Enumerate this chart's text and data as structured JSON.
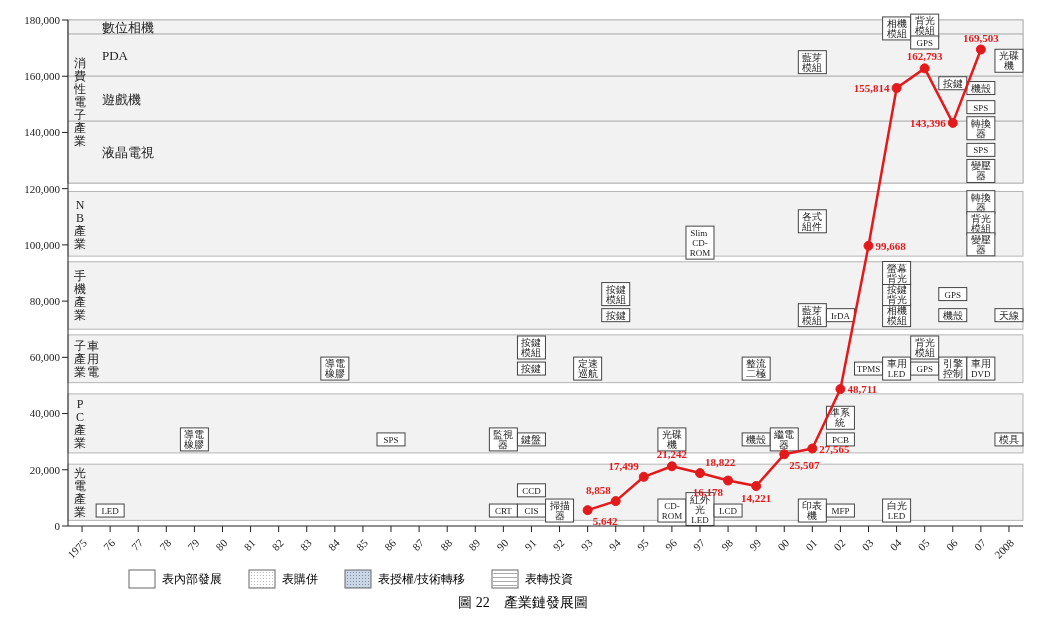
{
  "chart_data": {
    "type": "line",
    "title": "圖 22　產業鏈發展圖",
    "categories": [
      "1975",
      "76",
      "77",
      "78",
      "79",
      "80",
      "81",
      "82",
      "83",
      "84",
      "85",
      "86",
      "87",
      "88",
      "89",
      "90",
      "91",
      "92",
      "93",
      "94",
      "95",
      "96",
      "97",
      "98",
      "99",
      "00",
      "01",
      "02",
      "03",
      "04",
      "05",
      "06",
      "07",
      "2008"
    ],
    "series": [
      {
        "color": "#e31a1c",
        "values": [
          null,
          null,
          null,
          null,
          null,
          null,
          null,
          null,
          null,
          null,
          null,
          null,
          null,
          null,
          null,
          null,
          null,
          null,
          5642,
          8858,
          17499,
          21242,
          18822,
          16178,
          14221,
          25507,
          27565,
          48711,
          99668,
          155814,
          162793,
          143396,
          169503,
          null
        ],
        "value_labels": [
          null,
          null,
          null,
          null,
          null,
          null,
          null,
          null,
          null,
          null,
          null,
          null,
          null,
          null,
          null,
          null,
          null,
          null,
          "5,642",
          "8,858",
          "17,499",
          "21,242",
          "18,822",
          "16,178",
          "14,221",
          "25,507",
          "27,565",
          "48,711",
          "99,668",
          "155,814",
          "162,793",
          "143,396",
          "169,503",
          null
        ]
      }
    ],
    "ylim": [
      0,
      180000
    ],
    "yticks": [
      0,
      {
        "value": 20000,
        "label": "20,000"
      },
      {
        "value": 40000,
        "label": "40,000"
      },
      {
        "value": 60000,
        "label": "60,000"
      },
      {
        "value": 80000,
        "label": "80,000"
      },
      {
        "value": 100000,
        "label": "100,000"
      },
      {
        "value": 120000,
        "label": "120,000"
      },
      {
        "value": 140000,
        "label": "140,000"
      },
      {
        "value": 160000,
        "label": "160,000"
      },
      {
        "value": 180000,
        "label": "180,000"
      }
    ],
    "marker": "circle",
    "line_style": "solid",
    "bands": [
      {
        "axis": "y",
        "from": 2000,
        "to": 22000,
        "label": "光電產業",
        "color": "#f2f2f2"
      },
      {
        "axis": "y",
        "from": 26000,
        "to": 47000,
        "label": "PC產業",
        "color": "#f2f2f2"
      },
      {
        "axis": "y",
        "from": 51000,
        "to": 68000,
        "label": "車用電子產業",
        "color": "#f2f2f2"
      },
      {
        "axis": "y",
        "from": 70000,
        "to": 94000,
        "label": "手機產業",
        "color": "#f2f2f2"
      },
      {
        "axis": "y",
        "from": 96000,
        "to": 119000,
        "label": "NB產業",
        "color": "#f2f2f2"
      },
      {
        "axis": "y",
        "from": 122000,
        "to": 180000,
        "label": "消費性電子產業",
        "color": "#f2f2f2"
      },
      {
        "axis": "y",
        "from": 175000,
        "to": 180000,
        "label": "數位相機",
        "color": "#f2f2f2"
      },
      {
        "axis": "y",
        "from": 160000,
        "to": 175000,
        "label": "PDA",
        "color": "#f2f2f2"
      },
      {
        "axis": "y",
        "from": 144000,
        "to": 160000,
        "label": "遊戲機",
        "color": "#f2f2f2"
      },
      {
        "axis": "y",
        "from": 122000,
        "to": 144000,
        "label": "液晶電視",
        "color": "#f2f2f2"
      }
    ],
    "annotations": [
      "表內部發展",
      "表購併",
      "表授權/技術轉移",
      "表轉投資",
      {
        "text": "LED",
        "x": "76",
        "y": 5500
      },
      {
        "text": "CRT",
        "x": "90",
        "y": 5500
      },
      {
        "text": "CIS",
        "x": "91",
        "y": 5500
      },
      {
        "text": "CCD",
        "x": "91",
        "y": 12700
      },
      {
        "text": "掃描器",
        "x": "92",
        "y": 5500
      },
      {
        "text": "CD-ROM",
        "x": "96",
        "y": 5500
      },
      {
        "text": "紅外光LED",
        "x": "97",
        "y": 6000
      },
      {
        "text": "LCD",
        "x": "98",
        "y": 5500
      },
      {
        "text": "印表機",
        "x": "01",
        "y": 5500
      },
      {
        "text": "MFP",
        "x": "02",
        "y": 5500
      },
      {
        "text": "白光LED",
        "x": "04",
        "y": 5500
      },
      {
        "text": "導電橡膠",
        "x": "79",
        "y": 30800
      },
      {
        "text": "SPS",
        "x": "86",
        "y": 30800
      },
      {
        "text": "監視器",
        "x": "90",
        "y": 30800
      },
      {
        "text": "鍵盤",
        "x": "91",
        "y": 30800
      },
      {
        "text": "光碟機",
        "x": "96",
        "y": 30800
      },
      {
        "text": "機殼",
        "x": "99",
        "y": 30800
      },
      {
        "text": "繼電器",
        "x": "00",
        "y": 30800
      },
      {
        "text": "PCB",
        "x": "02",
        "y": 30800
      },
      {
        "text": "準系統",
        "x": "02",
        "y": 38500
      },
      {
        "text": "模具",
        "x": "2008",
        "y": 30800
      },
      {
        "text": "導電橡膠",
        "x": "84",
        "y": 56000
      },
      {
        "text": "按鍵",
        "x": "91",
        "y": 56000
      },
      {
        "text": "按鍵模組",
        "x": "91",
        "y": 63500
      },
      {
        "text": "定速巡航",
        "x": "93",
        "y": 56000
      },
      {
        "text": "整流二極",
        "x": "99",
        "y": 56000
      },
      {
        "text": "TPMS",
        "x": "03",
        "y": 56000
      },
      {
        "text": "車用LED",
        "x": "04",
        "y": 56000
      },
      {
        "text": "GPS",
        "x": "05",
        "y": 56000
      },
      {
        "text": "背光模組",
        "x": "05",
        "y": 63500
      },
      {
        "text": "引擎控制",
        "x": "06",
        "y": 56000
      },
      {
        "text": "車用DVD",
        "x": "07",
        "y": 56000
      },
      {
        "text": "按鍵",
        "x": "94",
        "y": 75000
      },
      {
        "text": "按鍵模組",
        "x": "94",
        "y": 82500
      },
      {
        "text": "藍芽模組",
        "x": "01",
        "y": 75000
      },
      {
        "text": "IrDA",
        "x": "02",
        "y": 75000
      },
      {
        "text": "相機模組",
        "x": "04",
        "y": 75000
      },
      {
        "text": "按鍵背光",
        "x": "04",
        "y": 82500
      },
      {
        "text": "螢幕背光",
        "x": "04",
        "y": 90000
      },
      {
        "text": "GPS",
        "x": "06",
        "y": 82500
      },
      {
        "text": "機殼",
        "x": "06",
        "y": 75000
      },
      {
        "text": "天線",
        "x": "2008",
        "y": 75000
      },
      {
        "text": "各式組件",
        "x": "01",
        "y": 108400
      },
      {
        "text": "Slim CD-ROM",
        "x": "97",
        "y": 100800
      },
      {
        "text": "轉換器",
        "x": "07",
        "y": 115200
      },
      {
        "text": "背光模組",
        "x": "07",
        "y": 107700
      },
      {
        "text": "變壓器",
        "x": "07",
        "y": 100200
      },
      {
        "text": "相機模組",
        "x": "04",
        "y": 177000
      },
      {
        "text": "藍芽模組",
        "x": "01",
        "y": 165000
      },
      {
        "text": "背光模組",
        "x": "05",
        "y": 178000
      },
      {
        "text": "GPS",
        "x": "05",
        "y": 172000
      },
      {
        "text": "光碟機",
        "x": "2008",
        "y": 165500
      },
      {
        "text": "機殼",
        "x": "07",
        "y": 155800
      },
      {
        "text": "按鍵",
        "x": "06",
        "y": 157500
      },
      {
        "text": "SPS",
        "x": "07",
        "y": 149000
      },
      {
        "text": "轉換器",
        "x": "07",
        "y": 141500
      },
      {
        "text": "SPS",
        "x": "07",
        "y": 133800
      },
      {
        "text": "變壓器",
        "x": "07",
        "y": 126300
      }
    ]
  }
}
